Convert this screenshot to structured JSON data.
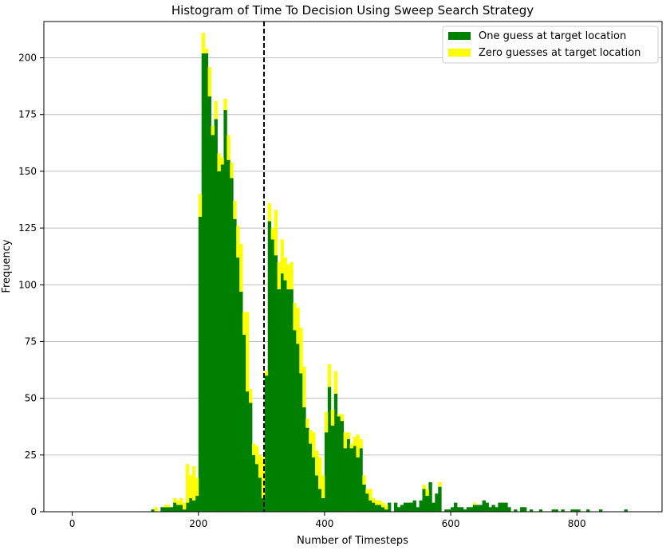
{
  "chart_data": {
    "type": "bar",
    "subtype": "stacked-histogram",
    "title": "Histogram of Time To Decision Using Sweep Search Strategy",
    "xlabel": "Number of Timesteps",
    "ylabel": "Frequency",
    "xlim": [
      -45,
      935
    ],
    "ylim": [
      0,
      216
    ],
    "xticks": [
      0,
      200,
      400,
      600,
      800
    ],
    "yticks": [
      0,
      25,
      50,
      75,
      100,
      125,
      150,
      175,
      200
    ],
    "grid": "y",
    "legend_position": "top-right",
    "bin_width": 5,
    "mean_line": {
      "x": 304,
      "style": "dashed",
      "color": "#000000"
    },
    "series": [
      {
        "name": "One guess at target location",
        "color": "#008000",
        "bins": [
          [
            125,
            1
          ],
          [
            140,
            2
          ],
          [
            145,
            2
          ],
          [
            150,
            2
          ],
          [
            155,
            2
          ],
          [
            160,
            4
          ],
          [
            165,
            3
          ],
          [
            170,
            3
          ],
          [
            175,
            1
          ],
          [
            180,
            4
          ],
          [
            185,
            6
          ],
          [
            190,
            5
          ],
          [
            195,
            7
          ],
          [
            200,
            130
          ],
          [
            205,
            202
          ],
          [
            210,
            202
          ],
          [
            215,
            183
          ],
          [
            220,
            166
          ],
          [
            225,
            173
          ],
          [
            230,
            150
          ],
          [
            235,
            153
          ],
          [
            240,
            177
          ],
          [
            245,
            155
          ],
          [
            250,
            147
          ],
          [
            255,
            129
          ],
          [
            260,
            112
          ],
          [
            265,
            97
          ],
          [
            270,
            78
          ],
          [
            275,
            53
          ],
          [
            280,
            48
          ],
          [
            285,
            25
          ],
          [
            290,
            21
          ],
          [
            295,
            15
          ],
          [
            300,
            6
          ],
          [
            305,
            60
          ],
          [
            310,
            128
          ],
          [
            315,
            120
          ],
          [
            320,
            113
          ],
          [
            325,
            98
          ],
          [
            330,
            105
          ],
          [
            335,
            102
          ],
          [
            340,
            98
          ],
          [
            345,
            98
          ],
          [
            350,
            80
          ],
          [
            355,
            74
          ],
          [
            360,
            61
          ],
          [
            365,
            46
          ],
          [
            370,
            37
          ],
          [
            375,
            30
          ],
          [
            380,
            24
          ],
          [
            385,
            16
          ],
          [
            390,
            10
          ],
          [
            395,
            6
          ],
          [
            400,
            35
          ],
          [
            405,
            55
          ],
          [
            410,
            38
          ],
          [
            415,
            52
          ],
          [
            420,
            42
          ],
          [
            425,
            40
          ],
          [
            430,
            28
          ],
          [
            435,
            32
          ],
          [
            440,
            28
          ],
          [
            445,
            29
          ],
          [
            450,
            24
          ],
          [
            455,
            28
          ],
          [
            460,
            12
          ],
          [
            465,
            8
          ],
          [
            470,
            5
          ],
          [
            475,
            4
          ],
          [
            480,
            3
          ],
          [
            485,
            3
          ],
          [
            490,
            2
          ],
          [
            495,
            1
          ],
          [
            500,
            4
          ],
          [
            510,
            4
          ],
          [
            515,
            2
          ],
          [
            520,
            3
          ],
          [
            525,
            4
          ],
          [
            530,
            4
          ],
          [
            535,
            4
          ],
          [
            540,
            5
          ],
          [
            545,
            2
          ],
          [
            550,
            5
          ],
          [
            555,
            10
          ],
          [
            560,
            7
          ],
          [
            565,
            13
          ],
          [
            570,
            4
          ],
          [
            575,
            8
          ],
          [
            580,
            11
          ],
          [
            590,
            1
          ],
          [
            595,
            1
          ],
          [
            600,
            2
          ],
          [
            605,
            4
          ],
          [
            610,
            2
          ],
          [
            615,
            2
          ],
          [
            620,
            1
          ],
          [
            625,
            2
          ],
          [
            630,
            2
          ],
          [
            635,
            3
          ],
          [
            640,
            3
          ],
          [
            645,
            3
          ],
          [
            650,
            5
          ],
          [
            655,
            4
          ],
          [
            660,
            2
          ],
          [
            665,
            3
          ],
          [
            670,
            2
          ],
          [
            675,
            4
          ],
          [
            680,
            4
          ],
          [
            685,
            4
          ],
          [
            690,
            2
          ],
          [
            700,
            1
          ],
          [
            710,
            2
          ],
          [
            715,
            2
          ],
          [
            725,
            1
          ],
          [
            740,
            1
          ],
          [
            760,
            1
          ],
          [
            765,
            1
          ],
          [
            775,
            1
          ],
          [
            790,
            1
          ],
          [
            795,
            1
          ],
          [
            800,
            1
          ],
          [
            815,
            1
          ],
          [
            835,
            1
          ],
          [
            875,
            1
          ]
        ]
      },
      {
        "name": "Zero guesses at target location",
        "color": "#ffff00",
        "bins": [
          [
            130,
            2
          ],
          [
            145,
            1
          ],
          [
            150,
            1
          ],
          [
            160,
            2
          ],
          [
            165,
            2
          ],
          [
            170,
            3
          ],
          [
            175,
            3
          ],
          [
            180,
            17
          ],
          [
            185,
            10
          ],
          [
            190,
            15
          ],
          [
            195,
            8
          ],
          [
            200,
            10
          ],
          [
            205,
            9
          ],
          [
            210,
            2
          ],
          [
            215,
            13
          ],
          [
            220,
            4
          ],
          [
            225,
            8
          ],
          [
            230,
            8
          ],
          [
            235,
            3
          ],
          [
            240,
            5
          ],
          [
            245,
            11
          ],
          [
            250,
            7
          ],
          [
            255,
            8
          ],
          [
            260,
            14
          ],
          [
            265,
            21
          ],
          [
            270,
            10
          ],
          [
            275,
            35
          ],
          [
            280,
            6
          ],
          [
            285,
            5
          ],
          [
            290,
            8
          ],
          [
            295,
            10
          ],
          [
            300,
            18
          ],
          [
            305,
            2
          ],
          [
            310,
            8
          ],
          [
            315,
            5
          ],
          [
            320,
            20
          ],
          [
            325,
            12
          ],
          [
            330,
            15
          ],
          [
            335,
            10
          ],
          [
            340,
            11
          ],
          [
            345,
            12
          ],
          [
            350,
            12
          ],
          [
            355,
            16
          ],
          [
            360,
            20
          ],
          [
            365,
            18
          ],
          [
            370,
            4
          ],
          [
            375,
            6
          ],
          [
            380,
            11
          ],
          [
            385,
            11
          ],
          [
            390,
            14
          ],
          [
            395,
            10
          ],
          [
            400,
            9
          ],
          [
            405,
            10
          ],
          [
            410,
            7
          ],
          [
            415,
            10
          ],
          [
            420,
            1
          ],
          [
            425,
            3
          ],
          [
            430,
            7
          ],
          [
            435,
            3
          ],
          [
            440,
            2
          ],
          [
            445,
            4
          ],
          [
            450,
            10
          ],
          [
            455,
            4
          ],
          [
            460,
            4
          ],
          [
            465,
            2
          ],
          [
            470,
            5
          ],
          [
            475,
            2
          ],
          [
            480,
            2
          ],
          [
            485,
            2
          ],
          [
            490,
            2
          ],
          [
            495,
            2
          ],
          [
            555,
            2
          ],
          [
            560,
            3
          ],
          [
            580,
            2
          ],
          [
            635,
            1
          ]
        ]
      }
    ]
  }
}
